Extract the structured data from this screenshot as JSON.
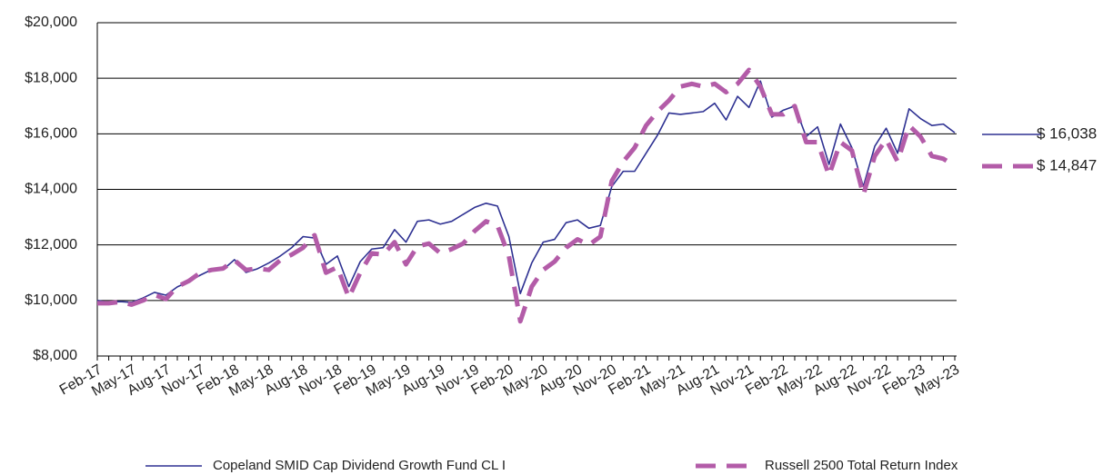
{
  "chart_data": {
    "type": "line",
    "categories": [
      "Feb-17",
      null,
      null,
      "May-17",
      null,
      null,
      "Aug-17",
      null,
      null,
      "Nov-17",
      null,
      null,
      "Feb-18",
      null,
      null,
      "May-18",
      null,
      null,
      "Aug-18",
      null,
      null,
      "Nov-18",
      null,
      null,
      "Feb-19",
      null,
      null,
      "May-19",
      null,
      null,
      "Aug-19",
      null,
      null,
      "Nov-19",
      null,
      null,
      "Feb-20",
      null,
      null,
      "May-20",
      null,
      null,
      "Aug-20",
      null,
      null,
      "Nov-20",
      null,
      null,
      "Feb-21",
      null,
      null,
      "May-21",
      null,
      null,
      "Aug-21",
      null,
      null,
      "Nov-21",
      null,
      null,
      "Feb-22",
      null,
      null,
      "May-22",
      null,
      null,
      "Aug-22",
      null,
      null,
      "Nov-22",
      null,
      null,
      "Feb-23",
      null,
      null,
      "May-23"
    ],
    "series": [
      {
        "name": "Copeland SMID Cap Dividend Growth Fund CL I",
        "color": "#2e3192",
        "dashed": false,
        "end_label": "$ 16,038",
        "values": [
          10000,
          9930,
          9960,
          9930,
          10090,
          10290,
          10190,
          10490,
          10680,
          10910,
          11110,
          11110,
          11470,
          11010,
          11140,
          11350,
          11600,
          11900,
          12300,
          12250,
          11300,
          11600,
          10500,
          11400,
          11850,
          11900,
          12550,
          12100,
          12850,
          12900,
          12750,
          12850,
          13100,
          13350,
          13500,
          13400,
          12300,
          10250,
          11350,
          12100,
          12200,
          12800,
          12900,
          12600,
          12700,
          14100,
          14650,
          14650,
          15300,
          15950,
          16750,
          16700,
          16750,
          16800,
          17100,
          16500,
          17350,
          16950,
          17900,
          16600,
          16850,
          17000,
          15900,
          16250,
          14900,
          16350,
          15500,
          14100,
          15550,
          16200,
          15300,
          16900,
          16550,
          16300,
          16350,
          16038
        ]
      },
      {
        "name": "Russell 2500 Total Return Index",
        "color": "#b35ca8",
        "dashed": true,
        "end_label": "$ 14,847",
        "values": [
          9900,
          9900,
          9950,
          9850,
          10000,
          10200,
          10050,
          10500,
          10700,
          11000,
          11100,
          11150,
          11450,
          11100,
          11150,
          11100,
          11450,
          11650,
          11900,
          12350,
          11000,
          11200,
          10100,
          11000,
          11700,
          11650,
          12100,
          11300,
          11950,
          12050,
          11700,
          11850,
          12050,
          12500,
          12850,
          12700,
          11600,
          9250,
          10500,
          11100,
          11400,
          11900,
          12200,
          12000,
          12300,
          14300,
          15000,
          15500,
          16300,
          16800,
          17200,
          17700,
          17800,
          17700,
          17800,
          17500,
          17800,
          18300,
          17700,
          16700,
          16700,
          17000,
          15700,
          15700,
          14500,
          15700,
          15400,
          13800,
          15200,
          15800,
          15000,
          16300,
          15900,
          15200,
          15100,
          14847
        ]
      }
    ],
    "ylim": [
      8000,
      20000
    ],
    "yticks": [
      {
        "value": 8000,
        "label": "$8,000"
      },
      {
        "value": 10000,
        "label": "$10,000"
      },
      {
        "value": 12000,
        "label": "$12,000"
      },
      {
        "value": 14000,
        "label": "$14,000"
      },
      {
        "value": 16000,
        "label": "$16,000"
      },
      {
        "value": 18000,
        "label": "$18,000"
      },
      {
        "value": 20000,
        "label": "$20,000"
      }
    ],
    "grid": true,
    "legend": "bottom"
  }
}
